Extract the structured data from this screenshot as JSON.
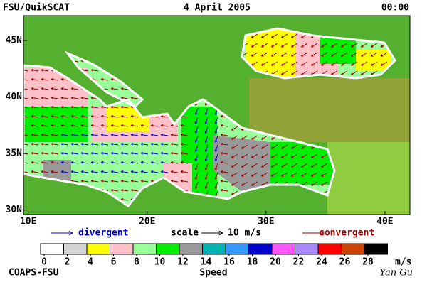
{
  "header": {
    "source": "FSU/QuikSCAT",
    "date": "4 April 2005",
    "time": "00:00"
  },
  "map": {
    "lonlim": [
      9.6,
      42.1
    ],
    "latlim": [
      29.6,
      47.2
    ],
    "lonticks": [
      {
        "value": 10,
        "label": "10E"
      },
      {
        "value": 20,
        "label": "20E"
      },
      {
        "value": 30,
        "label": "30E"
      },
      {
        "value": 40,
        "label": "40E"
      }
    ],
    "latticks": [
      {
        "value": 45,
        "label": "45N"
      },
      {
        "value": 40,
        "label": "40N"
      },
      {
        "value": 35,
        "label": "35N"
      },
      {
        "value": 30,
        "label": "30N"
      }
    ]
  },
  "legend": {
    "divergent": "divergent",
    "scale": "scale",
    "scale_value": "10 m/s",
    "convergent": "convergent",
    "divergent_color": "#0000cc",
    "convergent_color": "#990000"
  },
  "colorbar": {
    "ticks": [
      0,
      2,
      4,
      6,
      8,
      10,
      12,
      14,
      16,
      18,
      20,
      22,
      24,
      26,
      28
    ],
    "unit": "m/s",
    "label": "Speed",
    "colors": [
      "#ffffff",
      "#d3d3d3",
      "#ffff00",
      "#ffc0c8",
      "#99ff99",
      "#00ee00",
      "#999999",
      "#00b4b4",
      "#3399ff",
      "#0000cc",
      "#ff55ff",
      "#aa88ff",
      "#ff0000",
      "#cc4400",
      "#000000"
    ]
  },
  "footer": {
    "left": "COAPS-FSU",
    "right": "Yan Gu"
  }
}
